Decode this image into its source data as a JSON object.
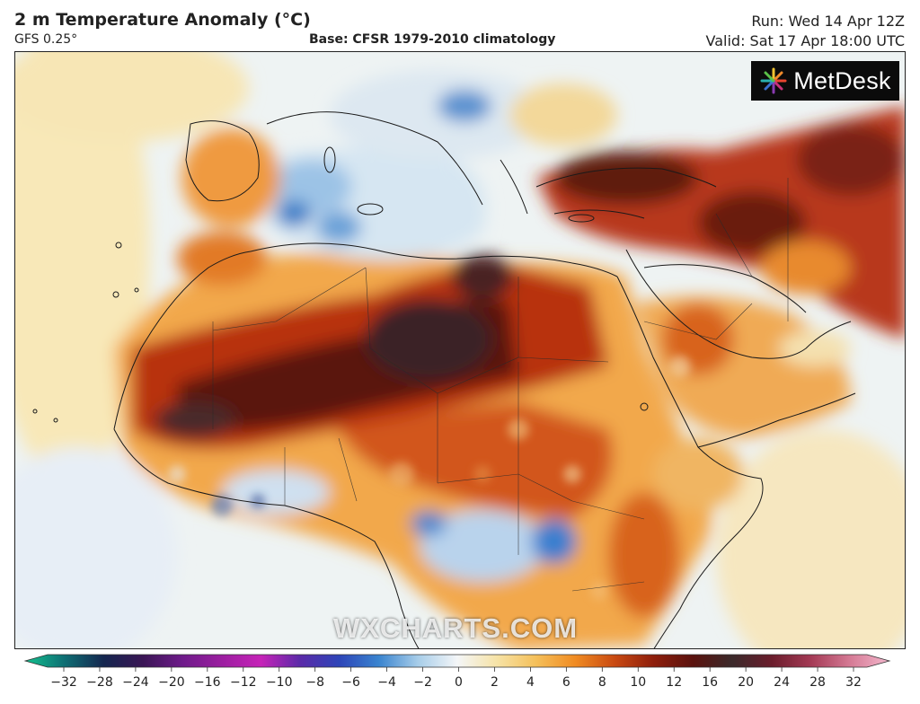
{
  "header": {
    "title": "2 m Temperature Anomaly (°C)",
    "model": "GFS 0.25°",
    "base": "Base: CFSR 1979-2010 climatology",
    "run": "Run: Wed 14 Apr 12Z",
    "valid": "Valid: Sat 17 Apr 18:00 UTC"
  },
  "logo": {
    "text": "MetDesk",
    "icon": "metdesk-burst-icon"
  },
  "watermark": "WXCHARTS.COM",
  "colorbar": {
    "labels": [
      "−32",
      "−28",
      "−24",
      "−20",
      "−16",
      "−12",
      "−10",
      "−8",
      "−6",
      "−4",
      "−2",
      "0",
      "2",
      "4",
      "6",
      "8",
      "10",
      "12",
      "16",
      "20",
      "24",
      "28",
      "32"
    ],
    "stops": [
      "#13c28f",
      "#0e6e73",
      "#14264f",
      "#3a1655",
      "#6e1b8a",
      "#9b1ea0",
      "#c623b8",
      "#5a2aa8",
      "#2d45b8",
      "#3a84cf",
      "#a7cde9",
      "#f4f6f8",
      "#f6e3a7",
      "#f5c05a",
      "#f08b22",
      "#c94a12",
      "#8e1e0c",
      "#5a120e",
      "#3b2a2b",
      "#6a1d2c",
      "#a43a55",
      "#d57a95",
      "#f4b8cd"
    ]
  },
  "colors": {
    "frame": "#222222",
    "ocean_cool": "#eaf2f6",
    "warm": "#e57a2a",
    "hot": "#8e1e0c"
  }
}
